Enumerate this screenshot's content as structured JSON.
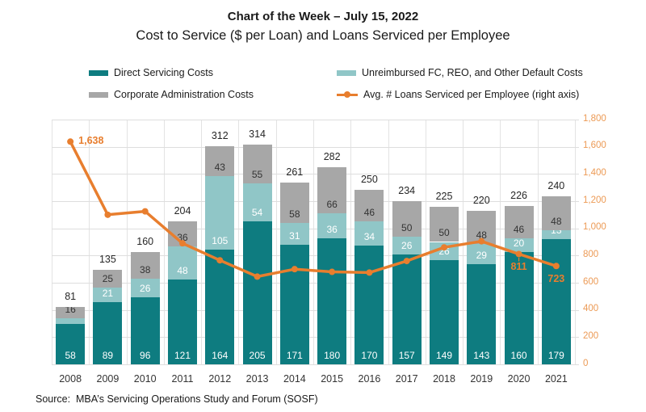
{
  "header": {
    "title": "Chart of the Week – July 15, 2022",
    "subtitle": "Cost to Service ($ per Loan) and Loans Serviced per Employee"
  },
  "legend": {
    "items": [
      {
        "name": "direct-servicing-costs",
        "label": "Direct Servicing Costs",
        "key": "swatch",
        "color": "#0E7C80"
      },
      {
        "name": "unreimbursed-default-costs",
        "label": "Unreimbursed FC, REO, and Other Default Costs",
        "key": "swatch",
        "color": "#90C6C7"
      },
      {
        "name": "corporate-administration-costs",
        "label": "Corporate Administration Costs",
        "key": "swatch",
        "color": "#A7A7A7"
      },
      {
        "name": "avg-loans-serviced-per-employee",
        "label": "Avg. # Loans Serviced per Employee (right axis)",
        "key": "line",
        "color": "#E87E2E"
      }
    ]
  },
  "chart_data": {
    "type": "bar",
    "subtype": "stacked-columns-with-line-overlay",
    "categories": [
      "2008",
      "2009",
      "2010",
      "2011",
      "2012",
      "2013",
      "2014",
      "2015",
      "2016",
      "2017",
      "2018",
      "2019",
      "2020",
      "2021"
    ],
    "series": [
      {
        "name": "Direct Servicing Costs",
        "role": "bar",
        "color": "#0E7C80",
        "label_color": "#FFFFFF",
        "values": [
          58,
          89,
          96,
          121,
          164,
          205,
          171,
          180,
          170,
          157,
          149,
          143,
          160,
          179
        ]
      },
      {
        "name": "Unreimbursed FC, REO, and Other Default Costs",
        "role": "bar",
        "color": "#90C6C7",
        "label_color": "#FFFFFF",
        "values": [
          8,
          21,
          26,
          48,
          105,
          54,
          31,
          36,
          34,
          26,
          26,
          29,
          20,
          13
        ]
      },
      {
        "name": "Corporate Administration Costs",
        "role": "bar",
        "color": "#A7A7A7",
        "label_color": "#333333",
        "values": [
          16,
          25,
          38,
          36,
          43,
          55,
          58,
          66,
          46,
          50,
          50,
          48,
          46,
          48
        ]
      },
      {
        "name": "Avg. # Loans Serviced per Employee",
        "role": "line",
        "axis": "right",
        "color": "#E87E2E",
        "values": [
          1638,
          1100,
          1125,
          890,
          765,
          645,
          700,
          680,
          675,
          760,
          860,
          905,
          811,
          723
        ],
        "point_labels": [
          {
            "index": 0,
            "text": "1,638",
            "position": "right"
          },
          {
            "index": 12,
            "text": "811",
            "position": "below",
            "leader": true
          },
          {
            "index": 13,
            "text": "723",
            "position": "below"
          }
        ]
      }
    ],
    "total_labels": [
      "81",
      "135",
      "160",
      "204",
      "312",
      "314",
      "261",
      "282",
      "250",
      "234",
      "225",
      "220",
      "226",
      "240"
    ],
    "left_axis": {
      "min": 0,
      "max": 350,
      "labels_visible": false
    },
    "right_axis": {
      "min": 0,
      "max": 1800,
      "step": 200,
      "tick_labels": [
        "0",
        "200",
        "400",
        "600",
        "800",
        "1,000",
        "1,200",
        "1,400",
        "1,600",
        "1,800"
      ],
      "label_color": "#EC9A55"
    },
    "grid": true,
    "gridline_color": "#DEDEDE",
    "legend_position": "top"
  },
  "source": "Source:  MBA’s Servicing Operations Study and Forum (SOSF)"
}
